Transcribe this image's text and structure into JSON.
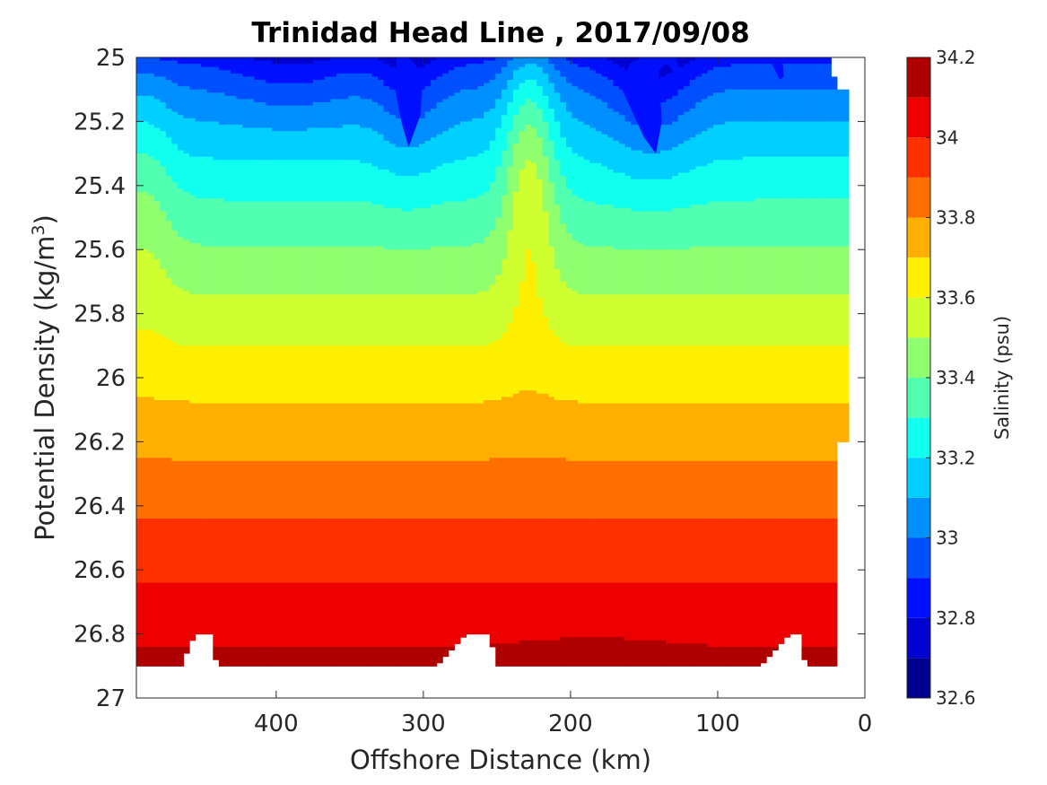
{
  "chart_data": {
    "type": "contour",
    "title": "Trinidad Head Line , 2017/09/08",
    "xlabel": "Offshore Distance (km)",
    "ylabel_main": "Potential Density (kg/m",
    "ylabel_sup": "3",
    "ylabel_close": ")",
    "xlim": [
      495,
      0
    ],
    "ylim": [
      25,
      27
    ],
    "y_reversed": true,
    "x_reversed": true,
    "xticks": [
      400,
      300,
      200,
      100,
      0
    ],
    "xtick_labels": [
      "400",
      "300",
      "200",
      "100",
      "0"
    ],
    "yticks": [
      25,
      25.2,
      25.4,
      25.6,
      25.8,
      26,
      26.2,
      26.4,
      26.6,
      26.8,
      27
    ],
    "ytick_labels": [
      "25",
      "25.2",
      "25.4",
      "25.6",
      "25.8",
      "26",
      "26.2",
      "26.4",
      "26.6",
      "26.8",
      "27"
    ],
    "colorbar": {
      "label": "Salinity (psu)",
      "min": 32.6,
      "max": 34.2,
      "ticks": [
        32.6,
        32.8,
        33,
        33.2,
        33.4,
        33.6,
        33.8,
        34,
        34.2
      ],
      "tick_labels": [
        "32.6",
        "32.8",
        "33",
        "33.2",
        "33.4",
        "33.6",
        "33.8",
        "34",
        "34.2"
      ],
      "levels": [
        32.6,
        32.7,
        32.8,
        32.9,
        33.0,
        33.1,
        33.2,
        33.3,
        33.4,
        33.5,
        33.6,
        33.7,
        33.8,
        33.9,
        34.0,
        34.1,
        34.2
      ],
      "colors": [
        "#00008f",
        "#0000cf",
        "#0010ff",
        "#0050ff",
        "#008fff",
        "#00cfff",
        "#10ffef",
        "#50ffaf",
        "#8fff70",
        "#cfff30",
        "#ffef00",
        "#ffaf00",
        "#ff7000",
        "#ff3000",
        "#ef0000",
        "#af0000"
      ]
    },
    "grid": false,
    "contour_bands": [
      {
        "salinity_range": [
          32.8,
          32.9
        ],
        "color": "#0010ff",
        "points": [
          [
            145,
            25
          ],
          [
            128,
            25
          ],
          [
            126,
            25.06
          ],
          [
            135,
            25.02
          ],
          [
            140,
            25.04
          ],
          [
            138,
            25.2
          ],
          [
            142,
            25.3
          ],
          [
            150,
            25.25
          ],
          [
            160,
            25.15
          ],
          [
            165,
            25.1
          ],
          [
            160,
            25.02
          ],
          [
            152,
            25
          ],
          [
            145,
            25
          ]
        ]
      },
      {
        "salinity_range": [
          32.8,
          32.9
        ],
        "color": "#0010ff",
        "points": [
          [
            310,
            25
          ],
          [
            300,
            25.05
          ],
          [
            302,
            25.18
          ],
          [
            310,
            25.28
          ],
          [
            315,
            25.2
          ],
          [
            320,
            25.08
          ],
          [
            318,
            25
          ],
          [
            310,
            25
          ]
        ]
      },
      {
        "salinity_range": [
          32.8,
          32.9
        ],
        "color": "#0010ff",
        "points": [
          [
            65,
            25
          ],
          [
            58,
            25.07
          ],
          [
            55,
            25.06
          ],
          [
            56,
            25
          ],
          [
            65,
            25
          ]
        ]
      }
    ],
    "observed_depth_bottom_sigma": 26.9,
    "notes": "Filled contour of salinity along the Trinidad Head Line; salinity increases with potential density from ~32.8 near sigma 25 to ~34.1 near sigma 26.9."
  }
}
